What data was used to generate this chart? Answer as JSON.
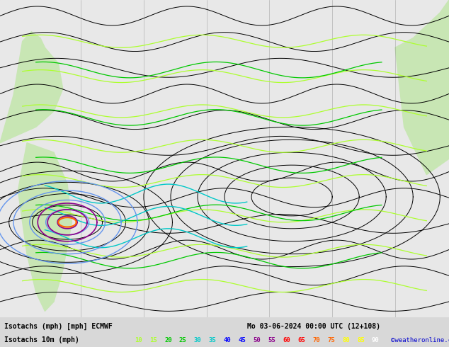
{
  "title_line1": "Isotachs (mph) [mph] ECMWF",
  "title_line2": "Mo 03-06-2024 00:00 UTC (12+108)",
  "legend_label": "Isotachs 10m (mph)",
  "copyright": "©weatheronline.co.uk",
  "speed_values": [
    10,
    15,
    20,
    25,
    30,
    35,
    40,
    45,
    50,
    55,
    60,
    65,
    70,
    75,
    80,
    85,
    90
  ],
  "speed_colors": [
    "#adff2f",
    "#adff2f",
    "#00c800",
    "#00c800",
    "#00c8c8",
    "#00c8c8",
    "#0000ff",
    "#0000ff",
    "#8b008b",
    "#8b008b",
    "#ff0000",
    "#ff0000",
    "#ff6400",
    "#ff6400",
    "#ffff00",
    "#ffff00",
    "#ffffff"
  ],
  "bg_color": "#d8d8d8",
  "map_bg": "#f0f0f0",
  "bottom_bar_color": "#1a1a1a",
  "figsize": [
    6.34,
    4.9
  ],
  "dpi": 100
}
